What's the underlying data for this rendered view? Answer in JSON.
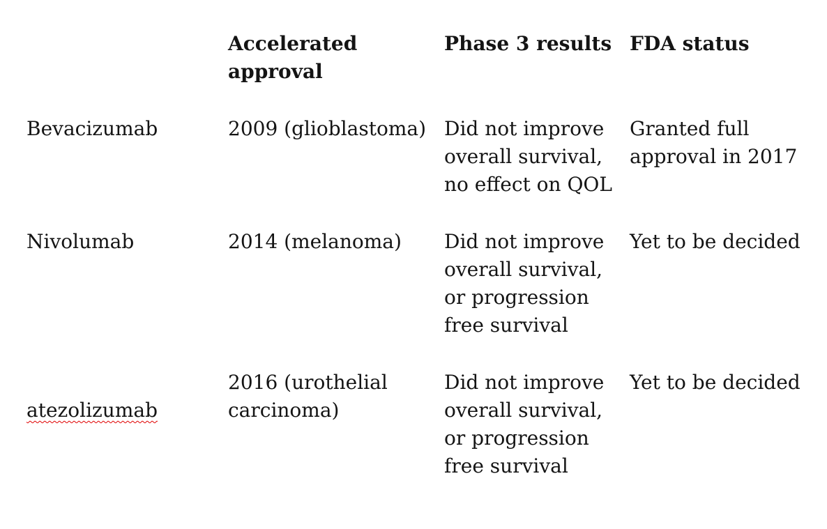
{
  "document": {
    "background_color": "#ffffff",
    "text_color": "#141414",
    "spellcheck_underline_color": "#e00000",
    "table": {
      "columns": [
        {
          "label": ""
        },
        {
          "label": "Accelerated\napproval"
        },
        {
          "label": "Phase 3 results"
        },
        {
          "label": "FDA status"
        }
      ],
      "rows": [
        {
          "drug": "Bevacizumab",
          "accelerated_approval": "2009 (glioblastoma)",
          "phase3_results": "Did not improve\noverall survival,\nno effect on QOL",
          "fda_status": "Granted full\napproval in 2017"
        },
        {
          "drug": "Nivolumab",
          "accelerated_approval": "2014 (melanoma)",
          "phase3_results": "Did not improve\noverall survival,\nor progression\nfree survival",
          "fda_status": "Yet to be decided"
        },
        {
          "drug": "atezolizumab",
          "accelerated_approval": "2016 (urothelial\ncarcinoma)",
          "phase3_results": "Did not improve\noverall survival,\nor progression\nfree survival",
          "fda_status": "Yet to be decided"
        }
      ]
    }
  }
}
